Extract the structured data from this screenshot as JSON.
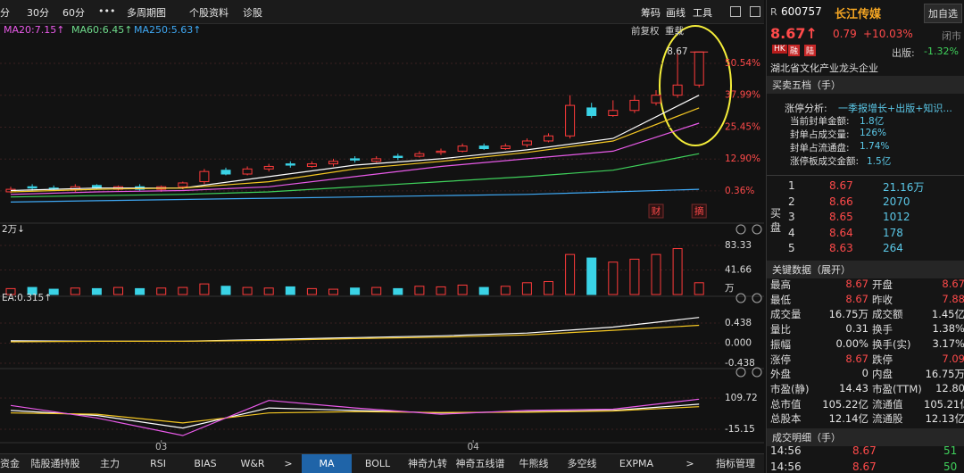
{
  "toolbar": {
    "left": [
      "分",
      "30分",
      "60分",
      "•••",
      "多周期图",
      "个股资料",
      "诊股"
    ],
    "right": [
      "筹码",
      "画线",
      "工具"
    ]
  },
  "ma_legend": [
    {
      "text": "MA20:7.15↑",
      "color": "#e85ae8"
    },
    {
      "text": "MA60:6.45↑",
      "color": "#6fdc8c"
    },
    {
      "text": "MA250:5.63↑",
      "color": "#3fa9f5"
    }
  ],
  "chart_buttons": [
    "前复权",
    "重载"
  ],
  "chart_data": [
    {
      "type": "candlestick",
      "up_color": "#ff3b3b",
      "down_color": "#3ad3e6",
      "label_color": "#ff4a4a",
      "open": [
        0,
        2,
        1.5,
        1,
        2.5,
        1,
        2,
        1,
        2,
        4,
        8.5,
        7,
        9,
        11,
        10,
        11,
        13,
        12,
        14,
        14,
        15.5,
        16,
        18,
        17,
        18.5,
        20,
        22,
        33,
        30,
        32,
        35,
        38,
        42
      ],
      "close": [
        1,
        1.5,
        1,
        2,
        1.5,
        2,
        1,
        2,
        3.5,
        8,
        7,
        9,
        10,
        10.5,
        11,
        12,
        12.5,
        13,
        13.5,
        15,
        16,
        18,
        17,
        18,
        20,
        22,
        34,
        30,
        32,
        36,
        38,
        42,
        55
      ],
      "high": [
        2,
        3,
        2.5,
        3,
        3,
        2.5,
        3,
        2.5,
        4,
        9,
        9.5,
        10,
        11,
        12,
        12,
        13,
        14,
        14,
        15,
        16,
        17,
        19,
        19,
        19,
        21,
        23,
        38,
        35,
        36,
        38,
        40,
        55,
        55
      ],
      "low": [
        -0.5,
        0.5,
        0.5,
        0,
        1,
        0.5,
        0.5,
        0,
        1,
        3,
        6.5,
        6.5,
        8,
        9.5,
        9.5,
        10,
        11.5,
        11.5,
        12.5,
        13.5,
        14.5,
        15.5,
        16.5,
        16.5,
        17.5,
        19.5,
        21,
        29,
        29.5,
        31,
        34,
        37,
        41
      ],
      "series": [
        {
          "color": "#ffffff",
          "x": [
            0,
            4,
            8,
            12,
            16,
            20,
            24,
            28,
            32
          ],
          "values": [
            0.5,
            1.5,
            1.5,
            6,
            10.5,
            13,
            16.5,
            21,
            38
          ]
        },
        {
          "color": "#f3c623",
          "x": [
            0,
            4,
            8,
            12,
            16,
            20,
            24,
            28,
            32
          ],
          "values": [
            0,
            1,
            1.5,
            4,
            9,
            12,
            15.5,
            20,
            33
          ]
        },
        {
          "color": "#e85ae8",
          "x": [
            0,
            4,
            8,
            12,
            16,
            20,
            24,
            28,
            32
          ],
          "values": [
            -1,
            0,
            0.5,
            2,
            6,
            10,
            13,
            16,
            27
          ]
        },
        {
          "color": "#3fd15b",
          "x": [
            0,
            4,
            8,
            12,
            16,
            20,
            24,
            28,
            32
          ],
          "values": [
            -2,
            -1.5,
            -1,
            0,
            2,
            4,
            6,
            8.5,
            15
          ]
        },
        {
          "color": "#3fa9f5",
          "x": [
            0,
            4,
            8,
            12,
            16,
            20,
            24,
            28,
            32
          ],
          "values": [
            -4,
            -3.5,
            -3,
            -2.5,
            -2,
            -1.5,
            -1,
            0,
            1
          ]
        }
      ],
      "ylim": [
        -12.3,
        60.7
      ],
      "yticks": [
        {
          "value": 0.36,
          "label": "0.36%"
        },
        {
          "value": 12.9,
          "label": "12.90%"
        },
        {
          "value": 25.45,
          "label": "25.45%"
        },
        {
          "value": 37.99,
          "label": "37.99%"
        },
        {
          "value": 50.54,
          "label": "50.54%"
        }
      ],
      "grid": true,
      "high_label": {
        "label": "8.67",
        "at": 32
      },
      "markers": [
        {
          "label": "财",
          "at": 30
        },
        {
          "label": "摘",
          "at": 32
        }
      ]
    },
    {
      "type": "bar",
      "label": "2万↓",
      "unit": "万",
      "label_color": "#dddddd",
      "values": [
        10,
        12,
        9,
        11,
        10,
        12,
        10,
        11,
        12,
        18,
        14,
        12,
        11,
        13,
        10,
        9,
        11,
        12,
        10,
        14,
        13,
        16,
        12,
        14,
        20,
        22,
        68,
        62,
        55,
        60,
        68,
        78,
        20
      ],
      "ylim": [
        0,
        98.5
      ],
      "yticks": [
        41.66,
        83.33
      ],
      "grid": true
    },
    {
      "type": "line",
      "label": "EA:0.315↑",
      "label_color": "#dddddd",
      "series": [
        {
          "color": "#ffffff",
          "x": [
            0,
            4,
            8,
            12,
            16,
            20,
            24,
            28,
            32
          ],
          "values": [
            0.05,
            0.04,
            0.04,
            0.08,
            0.12,
            0.16,
            0.22,
            0.35,
            0.56
          ]
        },
        {
          "color": "#f3c623",
          "x": [
            0,
            4,
            8,
            12,
            16,
            20,
            24,
            28,
            32
          ],
          "values": [
            0.03,
            0.04,
            0.04,
            0.06,
            0.1,
            0.13,
            0.18,
            0.28,
            0.39
          ]
        }
      ],
      "ylim": [
        -0.535,
        0.827
      ],
      "yticks": [
        -0.438,
        {
          "value": 0,
          "label": "0.000"
        },
        0.438
      ],
      "grid": true
    },
    {
      "type": "line",
      "label_color": "#dddddd",
      "series": [
        {
          "color": "#ffffff",
          "x": [
            0,
            4,
            8,
            12,
            16,
            20,
            24,
            28,
            32
          ],
          "values": [
            60,
            40,
            -10,
            70,
            60,
            50,
            55,
            60,
            85
          ]
        },
        {
          "color": "#f3c623",
          "x": [
            0,
            4,
            8,
            12,
            16,
            20,
            24,
            28,
            32
          ],
          "values": [
            50,
            45,
            10,
            50,
            55,
            52,
            53,
            58,
            75
          ]
        },
        {
          "color": "#e85ae8",
          "x": [
            0,
            4,
            8,
            12,
            16,
            20,
            24,
            28,
            32
          ],
          "values": [
            80,
            30,
            -40,
            100,
            70,
            45,
            60,
            65,
            105
          ]
        }
      ],
      "ylim": [
        -65.1,
        184.6
      ],
      "yticks": [
        -15.15,
        109.72
      ],
      "grid": true,
      "xticks": [
        {
          "value": 7,
          "label": "03"
        },
        {
          "value": 21.5,
          "label": "04"
        }
      ]
    }
  ],
  "side": {
    "prefix": "R",
    "code": "600757",
    "name": "长江传媒",
    "add": "加自选",
    "price": "8.67↑",
    "change": "0.79",
    "pct": "+10.03%",
    "status": "闭市",
    "tags": [
      "HK",
      "融",
      "陆"
    ],
    "sector": "出版:",
    "sector_pct": "-1.32%",
    "desc": "湖北省文化产业龙头企业",
    "book_title": "买卖五档（手）",
    "analysis": {
      "title": "涨停分析:",
      "tag": "一季报增长+出版+知识...",
      "rows": [
        [
          "当前封单金额:",
          "1.8亿"
        ],
        [
          "封单占成交量:",
          "126%"
        ],
        [
          "封单占流通盘:",
          "1.74%"
        ],
        [
          "涨停板成交金额:",
          "1.5亿"
        ]
      ]
    },
    "bid_label": [
      "买",
      "盘"
    ],
    "bids": [
      [
        "1",
        "8.67",
        "21.16万"
      ],
      [
        "2",
        "8.66",
        "2070"
      ],
      [
        "3",
        "8.65",
        "1012"
      ],
      [
        "4",
        "8.64",
        "178"
      ],
      [
        "5",
        "8.63",
        "264"
      ]
    ],
    "key_title": "关键数据（展开）",
    "key_rows": [
      [
        "最高",
        "8.67",
        "开盘",
        "8.67"
      ],
      [
        "最低",
        "8.67",
        "昨收",
        "7.88"
      ],
      [
        "成交量",
        "16.75万",
        "成交额",
        "1.45亿"
      ],
      [
        "量比",
        "0.31",
        "换手",
        "1.38%"
      ],
      [
        "振幅",
        "0.00%",
        "换手(实)",
        "3.17%"
      ],
      [
        "涨停",
        "8.67",
        "跌停",
        "7.09"
      ],
      [
        "外盘",
        "0",
        "内盘",
        "16.75万"
      ],
      [
        "市盈(静)",
        "14.43",
        "市盈(TTM)",
        "12.80"
      ],
      [
        "总市值",
        "105.22亿",
        "流通值",
        "105.21亿"
      ],
      [
        "总股本",
        "12.14亿",
        "流通股",
        "12.13亿"
      ]
    ],
    "trades_title": "成交明细（手）",
    "trades": [
      [
        "14:56",
        "8.67",
        "51"
      ],
      [
        "14:56",
        "8.67",
        "50"
      ]
    ]
  },
  "tabs": {
    "items": [
      "资金",
      "陆股通持股",
      "主力",
      "RSI",
      "BIAS",
      "W&R",
      ">",
      "MA",
      "BOLL",
      "神奇九转",
      "神奇五线谱",
      "牛熊线",
      "多空线",
      "EXPMA",
      ">",
      "指标管理"
    ],
    "active": 7
  }
}
